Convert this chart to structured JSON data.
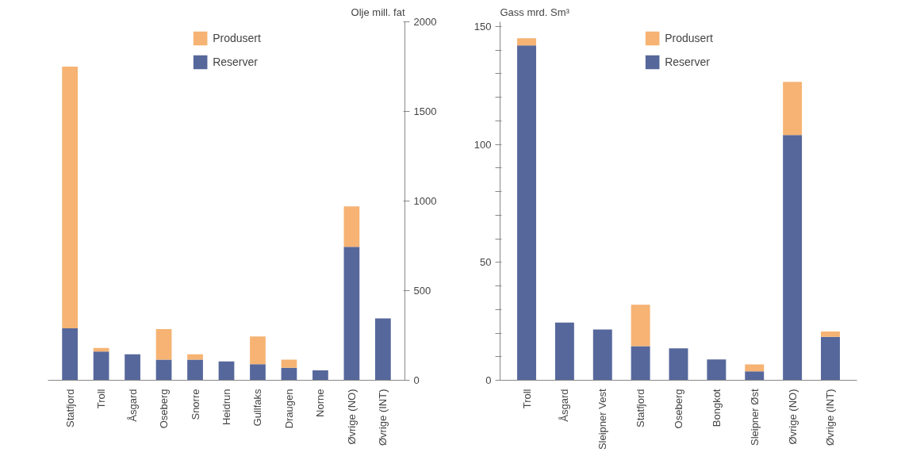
{
  "chart_data": [
    {
      "type": "bar",
      "stacked": true,
      "ylabel": "Olje mill. fat",
      "categories": [
        "Statfjord",
        "Troll",
        "Åsgard",
        "Oseberg",
        "Snorre",
        "Heidrun",
        "Gullfaks",
        "Draugen",
        "Norne",
        "Øvrige (NO)",
        "Øvrige (INT)"
      ],
      "series": [
        {
          "name": "Reserver",
          "color": "#56679b",
          "values": [
            290,
            160,
            145,
            115,
            115,
            105,
            90,
            70,
            55,
            745,
            345
          ]
        },
        {
          "name": "Produsert",
          "color": "#f6b373",
          "values": [
            1460,
            20,
            null,
            170,
            30,
            null,
            155,
            45,
            null,
            225,
            null
          ]
        }
      ],
      "ylim": [
        0,
        2000
      ],
      "yticks": [
        0,
        500,
        1000,
        1500,
        2000
      ],
      "grid": false,
      "legend": "top"
    },
    {
      "type": "bar",
      "stacked": true,
      "ylabel": "Gass mrd. Sm³",
      "categories": [
        "Troll",
        "Åsgard",
        "Sleipner Vest",
        "Statfjord",
        "Oseberg",
        "Bongkot",
        "Sleipner Øst",
        "Øvrige (NO)",
        "Øvrige (INT)"
      ],
      "series": [
        {
          "name": "Reserver",
          "color": "#56679b",
          "values": [
            142,
            24.5,
            21.5,
            14.5,
            13.5,
            8.8,
            3.8,
            104,
            18.4
          ]
        },
        {
          "name": "Produsert",
          "color": "#f6b373",
          "values": [
            3,
            null,
            null,
            17.5,
            null,
            null,
            2.9,
            22.5,
            2.3
          ]
        }
      ],
      "ylim": [
        0,
        152
      ],
      "yticks": [
        0,
        {
          "value": 10,
          "label": null
        },
        {
          "value": 20,
          "label": null
        },
        {
          "value": 30,
          "label": null
        },
        {
          "value": 40,
          "label": null
        },
        50,
        {
          "value": 60,
          "label": null
        },
        {
          "value": 70,
          "label": null
        },
        {
          "value": 80,
          "label": null
        },
        {
          "value": 90,
          "label": null
        },
        100,
        {
          "value": 110,
          "label": null
        },
        {
          "value": 120,
          "label": null
        },
        {
          "value": 130,
          "label": null
        },
        {
          "value": 140,
          "label": null
        },
        150
      ],
      "grid": false,
      "legend": "top"
    }
  ]
}
